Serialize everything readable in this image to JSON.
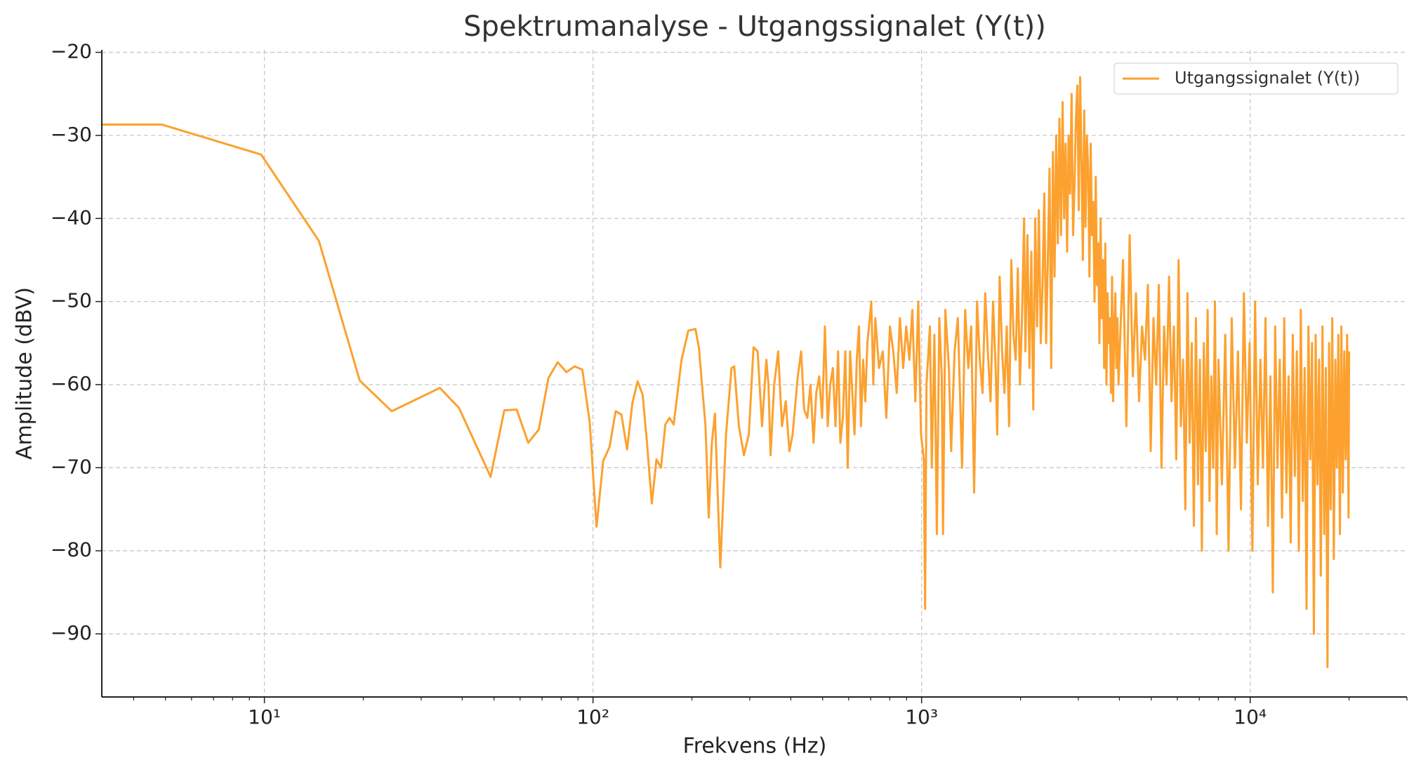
{
  "chart_data": {
    "type": "line",
    "title": "Spektrumanalyse - Utgangssignalet (Y(t))",
    "x_label": "Frekvens (Hz)",
    "y_label": "Amplitude (dBV)",
    "x_scale": "log",
    "grid": true,
    "legend": "upper right",
    "xlim": [
      3.2,
      30000
    ],
    "ylim": [
      -97.6,
      -19.7
    ],
    "xticks": [
      {
        "value": 10,
        "label": "10¹"
      },
      {
        "value": 100,
        "label": "10²"
      },
      {
        "value": 1000,
        "label": "10³"
      },
      {
        "value": 10000,
        "label": "10⁴"
      }
    ],
    "xminorticks": [
      4,
      5,
      6,
      7,
      8,
      9,
      20,
      30,
      40,
      50,
      60,
      70,
      80,
      90,
      200,
      300,
      400,
      500,
      600,
      700,
      800,
      900,
      2000,
      3000,
      4000,
      5000,
      6000,
      7000,
      8000,
      9000,
      20000,
      30000
    ],
    "yticks": [
      {
        "value": -90,
        "label": "−90"
      },
      {
        "value": -80,
        "label": "−80"
      },
      {
        "value": -70,
        "label": "−70"
      },
      {
        "value": -60,
        "label": "−60"
      },
      {
        "value": -50,
        "label": "−50"
      },
      {
        "value": -40,
        "label": "−40"
      },
      {
        "value": -30,
        "label": "−30"
      },
      {
        "value": -20,
        "label": "−20"
      }
    ],
    "x": [
      2.44,
      4.88,
      9.77,
      14.65,
      19.5,
      24.4,
      34.2,
      39.1,
      48.8,
      53.7,
      58.6,
      63.5,
      68.4,
      73.2,
      78.1,
      83,
      87.9,
      92.8,
      97.7,
      102.5,
      107.4,
      112.3,
      117.2,
      122,
      127,
      131.8,
      136.7,
      141.6,
      146,
      151,
      156,
      161,
      166,
      171,
      176,
      186,
      195,
      205,
      210,
      220,
      225,
      230,
      235,
      244,
      254,
      264,
      269,
      278,
      288,
      298,
      308,
      317,
      327,
      337,
      342,
      347,
      356,
      366,
      376,
      386,
      396,
      405,
      420,
      430,
      439,
      449,
      459,
      469,
      478,
      488,
      498,
      508,
      518,
      527,
      537,
      547,
      557,
      566,
      576,
      586,
      596,
      606,
      625,
      635,
      645,
      654,
      664,
      674,
      684,
      703,
      713,
      723,
      742,
      762,
      781,
      801,
      820,
      840,
      859,
      879,
      898,
      918,
      937,
      957,
      977,
      996,
      1016,
      1025,
      1035,
      1060,
      1074,
      1094,
      1113,
      1132,
      1152,
      1162,
      1181,
      1211,
      1230,
      1260,
      1289,
      1309,
      1328,
      1357,
      1387,
      1416,
      1445,
      1475,
      1504,
      1533,
      1562,
      1591,
      1621,
      1650,
      1680,
      1699,
      1728,
      1758,
      1787,
      1816,
      1846,
      1875,
      1904,
      1934,
      1963,
      1992,
      2021,
      2051,
      2070,
      2100,
      2129,
      2158,
      2187,
      2217,
      2246,
      2275,
      2305,
      2334,
      2363,
      2393,
      2422,
      2451,
      2480,
      2510,
      2539,
      2568,
      2598,
      2627,
      2656,
      2686,
      2715,
      2744,
      2773,
      2803,
      2832,
      2861,
      2891,
      2920,
      2949,
      2979,
      3008,
      3037,
      3066,
      3096,
      3125,
      3154,
      3184,
      3213,
      3242,
      3271,
      3301,
      3330,
      3360,
      3389,
      3418,
      3447,
      3477,
      3506,
      3535,
      3565,
      3594,
      3623,
      3652,
      3682,
      3711,
      3740,
      3770,
      3799,
      3828,
      3858,
      3887,
      3916,
      3945,
      3975,
      4102,
      4200,
      4297,
      4395,
      4492,
      4590,
      4688,
      4785,
      4883,
      4980,
      5078,
      5176,
      5273,
      5371,
      5469,
      5566,
      5664,
      5762,
      5859,
      5957,
      6055,
      6152,
      6250,
      6348,
      6445,
      6543,
      6641,
      6738,
      6836,
      6934,
      7031,
      7129,
      7227,
      7324,
      7422,
      7520,
      7617,
      7715,
      7813,
      7910,
      8008,
      8203,
      8398,
      8594,
      8789,
      8984,
      9180,
      9375,
      9570,
      9766,
      9961,
      10156,
      10352,
      10547,
      10742,
      10938,
      11133,
      11328,
      11523,
      11719,
      11914,
      12109,
      12305,
      12500,
      12695,
      12891,
      13086,
      13281,
      13477,
      13672,
      13867,
      14063,
      14258,
      14453,
      14648,
      14844,
      15039,
      15234,
      15430,
      15625,
      15820,
      16016,
      16211,
      16406,
      16602,
      16797,
      16992,
      17188,
      17383,
      17578,
      17773,
      17969,
      18164,
      18359,
      18555,
      18750,
      18945,
      19141,
      19336,
      19531,
      19727,
      19922,
      20000
    ],
    "series": [
      {
        "name": "Utgangssignalet (Y(t))",
        "color": "#fca12f",
        "values": [
          -28.7,
          -28.7,
          -32.3,
          -42.7,
          -59.5,
          -63.2,
          -60.4,
          -62.8,
          -71.1,
          -63.1,
          -63,
          -67,
          -65.4,
          -59.2,
          -57.3,
          -58.5,
          -57.8,
          -58.2,
          -64.5,
          -77.1,
          -69.2,
          -67.5,
          -63.2,
          -63.6,
          -67.8,
          -62.2,
          -59.6,
          -61.2,
          -67,
          -74.3,
          -69,
          -70,
          -64.8,
          -64,
          -64.8,
          -57,
          -53.5,
          -53.3,
          -55.5,
          -65,
          -76,
          -67,
          -63.5,
          -82,
          -66,
          -58,
          -57.8,
          -65,
          -68.5,
          -66,
          -55.5,
          -56,
          -65,
          -57,
          -60,
          -68.5,
          -60,
          -56,
          -65,
          -62,
          -68,
          -66,
          -59,
          -56,
          -63,
          -64,
          -60,
          -67,
          -61,
          -59,
          -64,
          -53,
          -65,
          -60,
          -58,
          -65,
          -56,
          -67,
          -64,
          -56,
          -70,
          -56,
          -66,
          -57,
          -53,
          -65,
          -57,
          -62,
          -55,
          -50,
          -60,
          -52,
          -58,
          -56,
          -64,
          -53,
          -56,
          -61,
          -52,
          -58,
          -53,
          -57,
          -51,
          -62,
          -50,
          -66,
          -69,
          -87,
          -60,
          -53,
          -70,
          -54,
          -78,
          -52,
          -59,
          -78,
          -51,
          -58,
          -68,
          -56,
          -52,
          -61,
          -70,
          -51,
          -58,
          -53,
          -73,
          -50,
          -57,
          -61,
          -49,
          -56,
          -62,
          -50,
          -58,
          -66,
          -47,
          -56,
          -61,
          -53,
          -65,
          -45,
          -54,
          -57,
          -46,
          -60,
          -52,
          -40,
          -56,
          -42,
          -58,
          -44,
          -63,
          -40,
          -53,
          -39,
          -55,
          -48,
          -37,
          -55,
          -45,
          -34,
          -58,
          -32,
          -47,
          -30,
          -43,
          -28,
          -42,
          -26,
          -40,
          -31,
          -44,
          -30,
          -37,
          -25,
          -42,
          -36,
          -28,
          -24,
          -39,
          -23,
          -33,
          -45,
          -27,
          -41,
          -30,
          -34,
          -47,
          -31,
          -42,
          -38,
          -50,
          -35,
          -48,
          -43,
          -55,
          -40,
          -52,
          -45,
          -58,
          -43,
          -60,
          -49,
          -55,
          -52,
          -61,
          -47,
          -62,
          -53,
          -49,
          -58,
          -52,
          -60,
          -45,
          -65,
          -42,
          -59,
          -49,
          -62,
          -53,
          -57,
          -48,
          -68,
          -52,
          -60,
          -48,
          -70,
          -53,
          -60,
          -47,
          -62,
          -53,
          -69,
          -45,
          -65,
          -57,
          -75,
          -49,
          -67,
          -55,
          -77,
          -52,
          -72,
          -57,
          -80,
          -55,
          -68,
          -51,
          -74,
          -59,
          -70,
          -50,
          -78,
          -57,
          -72,
          -54,
          -80,
          -52,
          -70,
          -56,
          -75,
          -49,
          -67,
          -55,
          -80,
          -50,
          -72,
          -57,
          -70,
          -52,
          -77,
          -59,
          -85,
          -53,
          -70,
          -57,
          -76,
          -52,
          -73,
          -59,
          -79,
          -54,
          -71,
          -56,
          -80,
          -51,
          -74,
          -58,
          -87,
          -53,
          -69,
          -55,
          -90,
          -54,
          -72,
          -57,
          -83,
          -53,
          -78,
          -58,
          -94,
          -55,
          -75,
          -52,
          -81,
          -57,
          -70,
          -54,
          -78,
          -53,
          -73,
          -56,
          -69,
          -54,
          -76,
          -56
        ]
      }
    ]
  }
}
